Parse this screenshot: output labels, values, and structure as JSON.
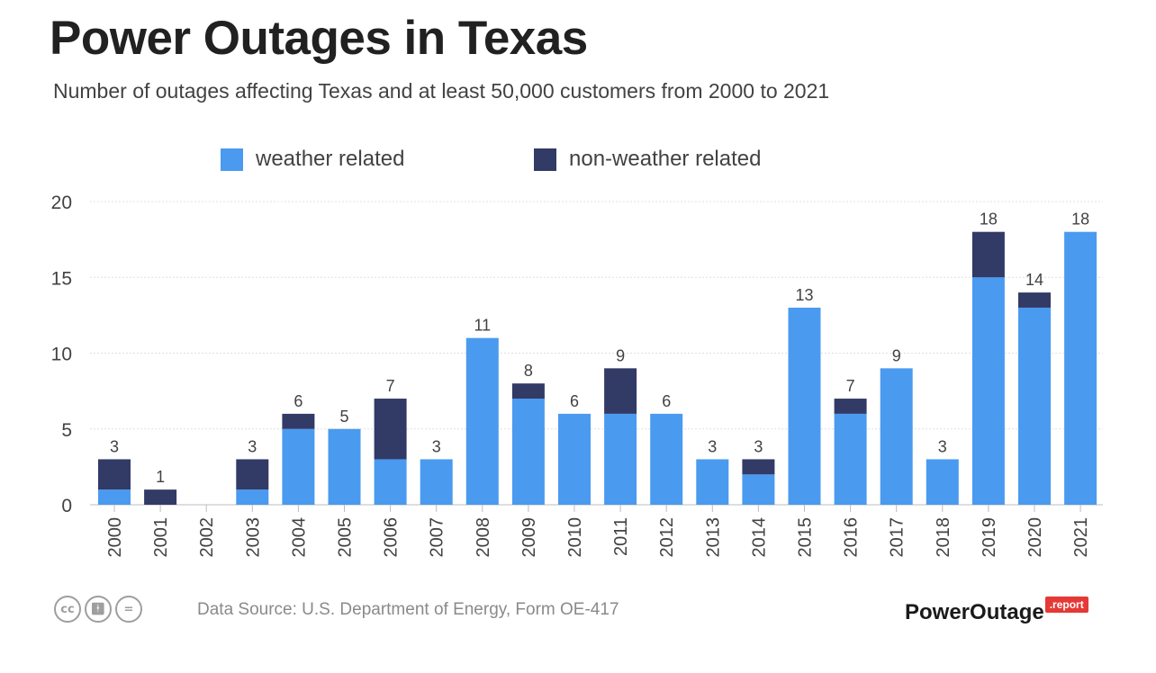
{
  "title": "Power Outages in Texas",
  "subtitle": "Number of outages affecting Texas and at least 50,000 customers from 2000 to 2021",
  "legend": [
    {
      "label": "weather related",
      "color": "#4a9af0"
    },
    {
      "label": "non-weather related",
      "color": "#323a66"
    }
  ],
  "footer": {
    "source": "Data Source: U.S. Department of Energy, Form OE-417",
    "brand_name": "PowerOutage",
    "brand_tag": ".report",
    "license_icons": [
      "cc-icon",
      "by-icon",
      "nd-icon"
    ]
  },
  "chart_data": {
    "type": "bar",
    "stacked": true,
    "categories": [
      "2000",
      "2001",
      "2002",
      "2003",
      "2004",
      "2005",
      "2006",
      "2007",
      "2008",
      "2009",
      "2010",
      "2011",
      "2012",
      "2013",
      "2014",
      "2015",
      "2016",
      "2017",
      "2018",
      "2019",
      "2020",
      "2021"
    ],
    "series": [
      {
        "name": "weather related",
        "color": "#4a9af0",
        "values": [
          1,
          0,
          0,
          1,
          5,
          5,
          3,
          3,
          11,
          7,
          6,
          6,
          6,
          3,
          2,
          13,
          6,
          9,
          3,
          15,
          13,
          18
        ]
      },
      {
        "name": "non-weather related",
        "color": "#323a66",
        "values": [
          2,
          1,
          0,
          2,
          1,
          0,
          4,
          0,
          0,
          1,
          0,
          3,
          0,
          0,
          1,
          0,
          1,
          0,
          0,
          3,
          1,
          0
        ]
      }
    ],
    "totals": [
      3,
      1,
      null,
      3,
      6,
      5,
      7,
      3,
      11,
      8,
      6,
      9,
      6,
      3,
      3,
      13,
      7,
      9,
      3,
      18,
      14,
      18
    ],
    "yticks": [
      0,
      5,
      10,
      15,
      20
    ],
    "ylim": [
      0,
      20
    ],
    "grid": true,
    "legend_position": "top"
  }
}
